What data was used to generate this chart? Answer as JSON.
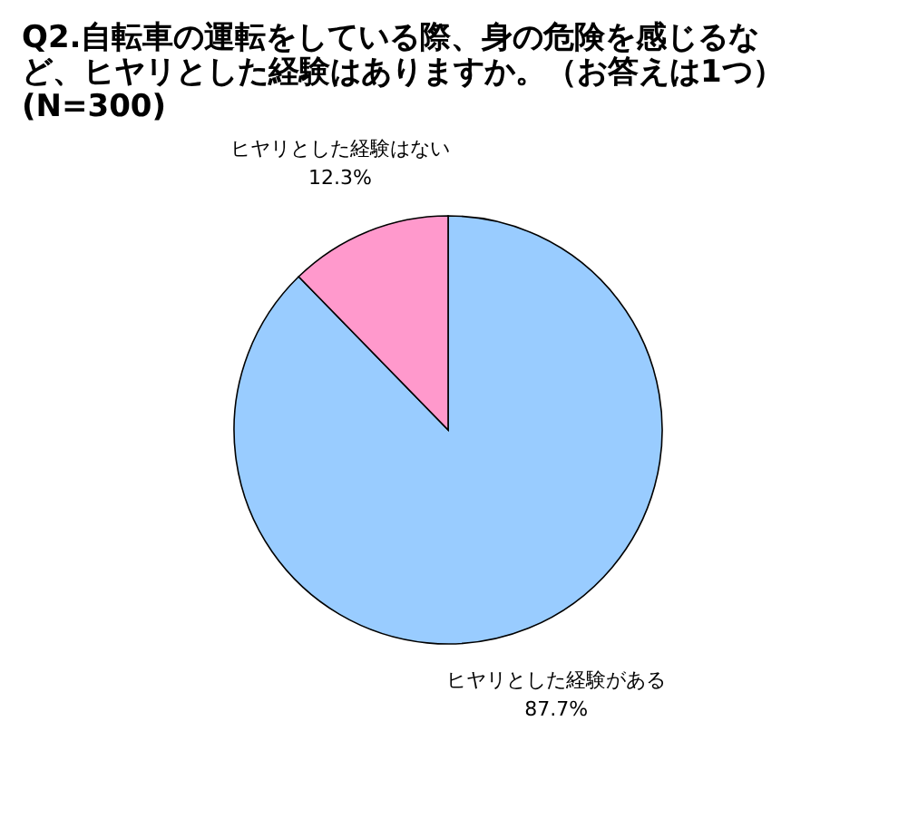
{
  "chart_data": {
    "type": "pie",
    "title": "Q2.自転車の運転をしている際、身の危険を感じるなど、ヒヤリとした経験はありますか。（お答えは1つ）(N=300)",
    "categories": [
      "ヒヤリとした経験がある",
      "ヒヤリとした経験はない"
    ],
    "values": [
      87.7,
      12.3
    ],
    "colors": [
      "#99ccff",
      "#ff99cc"
    ],
    "value_labels": [
      "87.7%",
      "12.3%"
    ],
    "legend": false
  }
}
